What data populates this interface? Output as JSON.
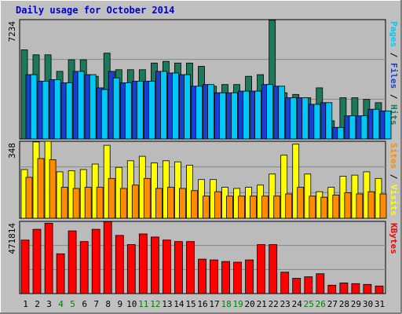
{
  "chart_data": {
    "title": "Daily usage for October 2014",
    "type": "bar",
    "days": [
      "1",
      "2",
      "3",
      "4",
      "5",
      "6",
      "7",
      "8",
      "9",
      "10",
      "11",
      "12",
      "13",
      "14",
      "15",
      "16",
      "17",
      "18",
      "19",
      "20",
      "21",
      "22",
      "23",
      "24",
      "25",
      "26",
      "27",
      "28",
      "29",
      "30",
      "31"
    ],
    "weekend_days": [
      "4",
      "5",
      "11",
      "12",
      "18",
      "19",
      "25",
      "26"
    ],
    "panels": {
      "top": {
        "max_label": "7234",
        "ymax": 7234,
        "label_parts": [
          "Pages",
          " / ",
          "Files",
          " / ",
          "Hits"
        ],
        "series": [
          {
            "name": "Hits",
            "color": "#1a7a5a",
            "values": [
              5400,
              5100,
              5100,
              4100,
              4800,
              4800,
              3800,
              5200,
              4200,
              4200,
              4200,
              4600,
              4700,
              4600,
              4600,
              4400,
              3200,
              3300,
              3300,
              3800,
              3900,
              7200,
              2800,
              2700,
              2500,
              3100,
              1100,
              2500,
              2500,
              2400,
              2200
            ]
          },
          {
            "name": "Files",
            "color": "#1a3fd0",
            "values": [
              3900,
              3500,
              3600,
              3400,
              4100,
              3900,
              3100,
              4100,
              3400,
              3500,
              3500,
              4100,
              4000,
              3900,
              3200,
              3300,
              2800,
              2800,
              2900,
              2900,
              3300,
              3200,
              2500,
              2500,
              2100,
              2200,
              700,
              1400,
              1400,
              1800,
              1700
            ]
          },
          {
            "name": "Pages",
            "color": "#00c8f8",
            "values": [
              3900,
              3500,
              3600,
              3400,
              4100,
              3900,
              3000,
              3700,
              3400,
              3500,
              3500,
              4100,
              4000,
              3900,
              3200,
              3300,
              2800,
              2800,
              2900,
              2900,
              3300,
              3200,
              2500,
              2500,
              2100,
              2200,
              700,
              1400,
              1400,
              1800,
              1700
            ]
          }
        ]
      },
      "middle": {
        "max_label": "348",
        "ymax": 348,
        "label_parts": [
          "Sites",
          " / ",
          "Visits"
        ],
        "series": [
          {
            "name": "Visits",
            "color": "#ffff00",
            "values": [
              220,
              345,
              348,
              210,
              215,
              220,
              245,
              330,
              230,
              260,
              280,
              250,
              260,
              255,
              240,
              175,
              175,
              140,
              135,
              140,
              150,
              200,
              285,
              335,
              200,
              120,
              140,
              190,
              195,
              210,
              180
            ]
          },
          {
            "name": "Sites",
            "color": "#ff8c00",
            "values": [
              185,
              270,
              265,
              140,
              135,
              140,
              140,
              180,
              135,
              150,
              180,
              135,
              140,
              135,
              125,
              100,
              120,
              100,
              100,
              100,
              100,
              100,
              110,
              140,
              100,
              95,
              105,
              115,
              110,
              120,
              110
            ]
          }
        ]
      },
      "bottom": {
        "max_label": "471814",
        "ymax": 471814,
        "label_parts": [
          "KBytes"
        ],
        "series": [
          {
            "name": "KBytes",
            "color": "#ff0000",
            "values": [
              350000,
              420000,
              460000,
              260000,
              410000,
              340000,
              420000,
              470000,
              380000,
              320000,
              390000,
              370000,
              350000,
              340000,
              340000,
              225000,
              220000,
              210000,
              205000,
              220000,
              320000,
              320000,
              140000,
              100000,
              110000,
              130000,
              55000,
              70000,
              65000,
              60000,
              50000
            ]
          }
        ]
      }
    }
  },
  "colors": {
    "background": "#c0c0c0",
    "plot_bg": "#bbbbbb",
    "title": "#0000cc",
    "weekend_tick": "#008000",
    "pages_label": "#00c8f8",
    "files_label": "#1a3fd0",
    "hits_label": "#1a7a5a",
    "sites_label": "#ff8c00",
    "visits_label": "#ffff00",
    "kbytes_label": "#ff0000",
    "separator": "#000000"
  }
}
